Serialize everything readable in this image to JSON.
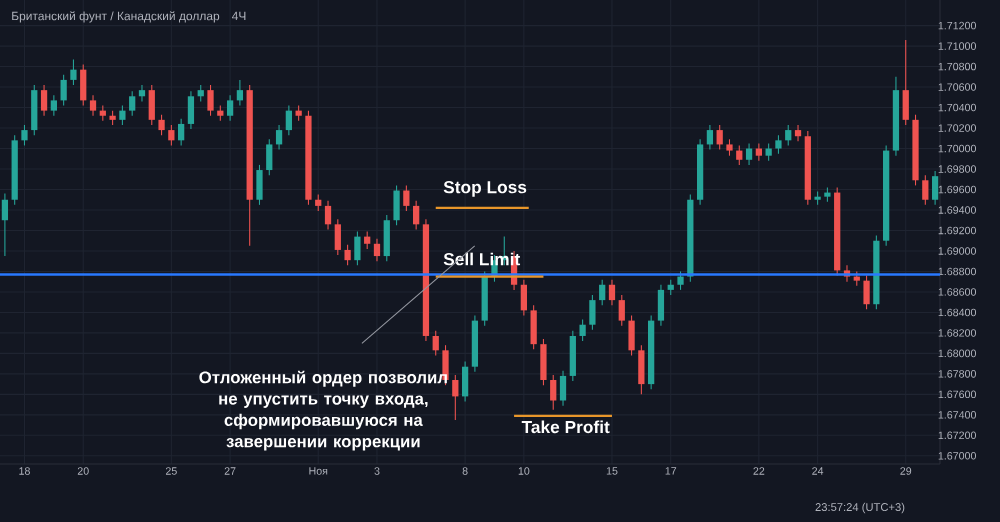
{
  "chart_data": {
    "type": "candlestick",
    "title": "Британский фунт / Канадский доллар",
    "subtitle": "4Ч",
    "categories": [
      null,
      null,
      "18",
      null,
      null,
      null,
      null,
      null,
      "20",
      null,
      null,
      null,
      null,
      null,
      null,
      null,
      null,
      "25",
      null,
      null,
      null,
      null,
      null,
      "27",
      null,
      null,
      null,
      null,
      null,
      null,
      null,
      null,
      "Ноя",
      null,
      null,
      null,
      null,
      null,
      "3",
      null,
      null,
      null,
      null,
      null,
      null,
      null,
      null,
      "8",
      null,
      null,
      null,
      null,
      null,
      "10",
      null,
      null,
      null,
      null,
      null,
      null,
      null,
      null,
      "15",
      null,
      null,
      null,
      null,
      null,
      "17",
      null,
      null,
      null,
      null,
      null,
      null,
      null,
      null,
      "22",
      null,
      null,
      null,
      null,
      null,
      "24",
      null,
      null,
      null,
      null,
      null,
      null,
      null,
      null,
      "29",
      null,
      null,
      null
    ],
    "ohlc": [
      [
        1.693,
        1.6956,
        1.6895,
        1.695
      ],
      [
        1.695,
        1.7013,
        1.6945,
        1.7008
      ],
      [
        1.7008,
        1.7023,
        1.7003,
        1.7018
      ],
      [
        1.7018,
        1.7062,
        1.7013,
        1.7057
      ],
      [
        1.7057,
        1.7062,
        1.7032,
        1.7037
      ],
      [
        1.7037,
        1.7052,
        1.7032,
        1.7047
      ],
      [
        1.7047,
        1.7072,
        1.7042,
        1.7067
      ],
      [
        1.7067,
        1.7087,
        1.7062,
        1.7077
      ],
      [
        1.7077,
        1.7082,
        1.7042,
        1.7047
      ],
      [
        1.7047,
        1.7052,
        1.7032,
        1.7037
      ],
      [
        1.7037,
        1.7042,
        1.7027,
        1.7032
      ],
      [
        1.7032,
        1.7037,
        1.7023,
        1.7028
      ],
      [
        1.7028,
        1.7042,
        1.7023,
        1.7037
      ],
      [
        1.7037,
        1.7056,
        1.7032,
        1.7051
      ],
      [
        1.7051,
        1.7062,
        1.7046,
        1.7057
      ],
      [
        1.7057,
        1.7062,
        1.7023,
        1.7028
      ],
      [
        1.7028,
        1.7033,
        1.7013,
        1.7018
      ],
      [
        1.7018,
        1.7023,
        1.7003,
        1.7008
      ],
      [
        1.7008,
        1.7029,
        1.7003,
        1.7024
      ],
      [
        1.7024,
        1.7056,
        1.7019,
        1.7051
      ],
      [
        1.7051,
        1.7062,
        1.7046,
        1.7057
      ],
      [
        1.7057,
        1.7062,
        1.7032,
        1.7037
      ],
      [
        1.7037,
        1.7042,
        1.7027,
        1.7032
      ],
      [
        1.7032,
        1.7052,
        1.7027,
        1.7047
      ],
      [
        1.7047,
        1.7067,
        1.7042,
        1.7057
      ],
      [
        1.7057,
        1.7062,
        1.6905,
        1.695
      ],
      [
        1.695,
        1.6984,
        1.6945,
        1.6979
      ],
      [
        1.6979,
        1.7009,
        1.6974,
        1.7004
      ],
      [
        1.7004,
        1.7023,
        1.6999,
        1.7018
      ],
      [
        1.7018,
        1.7042,
        1.7013,
        1.7037
      ],
      [
        1.7037,
        1.7042,
        1.7027,
        1.7032
      ],
      [
        1.7032,
        1.7037,
        1.6945,
        1.695
      ],
      [
        1.695,
        1.6955,
        1.6939,
        1.6944
      ],
      [
        1.6944,
        1.6949,
        1.6921,
        1.6926
      ],
      [
        1.6926,
        1.6931,
        1.6896,
        1.6901
      ],
      [
        1.6901,
        1.6906,
        1.6886,
        1.6891
      ],
      [
        1.6891,
        1.6919,
        1.6886,
        1.6914
      ],
      [
        1.6914,
        1.6919,
        1.6902,
        1.6907
      ],
      [
        1.6907,
        1.6912,
        1.689,
        1.6895
      ],
      [
        1.6895,
        1.6935,
        1.689,
        1.693
      ],
      [
        1.693,
        1.6964,
        1.6925,
        1.6959
      ],
      [
        1.6959,
        1.6964,
        1.6939,
        1.6944
      ],
      [
        1.6944,
        1.6949,
        1.6921,
        1.6926
      ],
      [
        1.6926,
        1.6931,
        1.6812,
        1.6817
      ],
      [
        1.6817,
        1.6822,
        1.6798,
        1.6803
      ],
      [
        1.6803,
        1.6808,
        1.6769,
        1.6774
      ],
      [
        1.6774,
        1.6779,
        1.6735,
        1.6758
      ],
      [
        1.6758,
        1.6792,
        1.6753,
        1.6787
      ],
      [
        1.6787,
        1.6837,
        1.6782,
        1.6832
      ],
      [
        1.6832,
        1.688,
        1.6827,
        1.6875
      ],
      [
        1.6875,
        1.6896,
        1.687,
        1.6891
      ],
      [
        1.6891,
        1.6914,
        1.6886,
        1.6895
      ],
      [
        1.6895,
        1.69,
        1.6862,
        1.6867
      ],
      [
        1.6867,
        1.6872,
        1.6837,
        1.6842
      ],
      [
        1.6842,
        1.6847,
        1.6804,
        1.6809
      ],
      [
        1.6809,
        1.6814,
        1.6769,
        1.6774
      ],
      [
        1.6774,
        1.6779,
        1.6745,
        1.6754
      ],
      [
        1.6754,
        1.6783,
        1.6749,
        1.6778
      ],
      [
        1.6778,
        1.6822,
        1.6773,
        1.6817
      ],
      [
        1.6817,
        1.6833,
        1.6812,
        1.6828
      ],
      [
        1.6828,
        1.6857,
        1.6823,
        1.6852
      ],
      [
        1.6852,
        1.6872,
        1.6847,
        1.6867
      ],
      [
        1.6867,
        1.6872,
        1.6847,
        1.6852
      ],
      [
        1.6852,
        1.6857,
        1.6827,
        1.6832
      ],
      [
        1.6832,
        1.6837,
        1.6798,
        1.6803
      ],
      [
        1.6803,
        1.6808,
        1.676,
        1.677
      ],
      [
        1.677,
        1.6837,
        1.6765,
        1.6832
      ],
      [
        1.6832,
        1.6867,
        1.6827,
        1.6862
      ],
      [
        1.6862,
        1.6872,
        1.6857,
        1.6867
      ],
      [
        1.6867,
        1.688,
        1.6862,
        1.6875
      ],
      [
        1.6875,
        1.6955,
        1.687,
        1.695
      ],
      [
        1.695,
        1.7009,
        1.6945,
        1.7004
      ],
      [
        1.7004,
        1.7023,
        1.6999,
        1.7018
      ],
      [
        1.7018,
        1.7023,
        1.6999,
        1.7004
      ],
      [
        1.7004,
        1.7009,
        1.6993,
        1.6998
      ],
      [
        1.6998,
        1.7003,
        1.6984,
        1.6989
      ],
      [
        1.6989,
        1.7005,
        1.6984,
        1.7
      ],
      [
        1.7,
        1.7005,
        1.6988,
        1.6993
      ],
      [
        1.6993,
        1.7005,
        1.6988,
        1.7
      ],
      [
        1.7,
        1.7013,
        1.6995,
        1.7008
      ],
      [
        1.7008,
        1.7023,
        1.7003,
        1.7018
      ],
      [
        1.7018,
        1.7023,
        1.7007,
        1.7012
      ],
      [
        1.7012,
        1.7017,
        1.6945,
        1.695
      ],
      [
        1.695,
        1.6958,
        1.6945,
        1.6953
      ],
      [
        1.6953,
        1.6962,
        1.6948,
        1.6957
      ],
      [
        1.6957,
        1.6962,
        1.6876,
        1.6881
      ],
      [
        1.6881,
        1.6886,
        1.687,
        1.6875
      ],
      [
        1.6875,
        1.688,
        1.6866,
        1.6871
      ],
      [
        1.6871,
        1.6876,
        1.6843,
        1.6848
      ],
      [
        1.6848,
        1.6915,
        1.6843,
        1.691
      ],
      [
        1.691,
        1.7003,
        1.6905,
        1.6998
      ],
      [
        1.6998,
        1.707,
        1.6993,
        1.7057
      ],
      [
        1.7057,
        1.7106,
        1.7023,
        1.7028
      ],
      [
        1.7028,
        1.7033,
        1.6964,
        1.6969
      ],
      [
        1.6969,
        1.6974,
        1.6945,
        1.695
      ],
      [
        1.695,
        1.6978,
        1.6945,
        1.6973
      ]
    ],
    "ylim": [
      1.6692,
      1.7145
    ],
    "yticks": [
      {
        "value": 1.67,
        "label": "1.67000"
      },
      {
        "value": 1.672,
        "label": "1.67200"
      },
      {
        "value": 1.674,
        "label": "1.67400"
      },
      {
        "value": 1.676,
        "label": "1.67600"
      },
      {
        "value": 1.678,
        "label": "1.67800"
      },
      {
        "value": 1.68,
        "label": "1.68000"
      },
      {
        "value": 1.682,
        "label": "1.68200"
      },
      {
        "value": 1.684,
        "label": "1.68400"
      },
      {
        "value": 1.686,
        "label": "1.68600"
      },
      {
        "value": 1.688,
        "label": "1.68800"
      },
      {
        "value": 1.69,
        "label": "1.69000"
      },
      {
        "value": 1.692,
        "label": "1.69200"
      },
      {
        "value": 1.694,
        "label": "1.69400"
      },
      {
        "value": 1.696,
        "label": "1.69600"
      },
      {
        "value": 1.698,
        "label": "1.69800"
      },
      {
        "value": 1.7,
        "label": "1.70000"
      },
      {
        "value": 1.702,
        "label": "1.70200"
      },
      {
        "value": 1.704,
        "label": "1.70400"
      },
      {
        "value": 1.706,
        "label": "1.70600"
      },
      {
        "value": 1.708,
        "label": "1.70800"
      },
      {
        "value": 1.71,
        "label": "1.71000"
      },
      {
        "value": 1.712,
        "label": "1.71200"
      }
    ],
    "grid": true,
    "ref_lines": [
      {
        "axis": "y",
        "value": 1.6877,
        "color": "#2979ff"
      },
      {
        "axis": "y",
        "value": 1.6942,
        "label": "Stop Loss",
        "color": "#e8962a"
      },
      {
        "axis": "y",
        "value": 1.6875,
        "label": "Sell Limit",
        "color": "#e8962a"
      },
      {
        "axis": "y",
        "value": 1.6739,
        "label": "Take Profit",
        "color": "#e8962a"
      }
    ],
    "annotations": [
      "Отложенный ордер позволил не упустить точку входа, сформировавшуюся на завершении коррекции",
      "23:57:24 (UTC+3)"
    ]
  }
}
